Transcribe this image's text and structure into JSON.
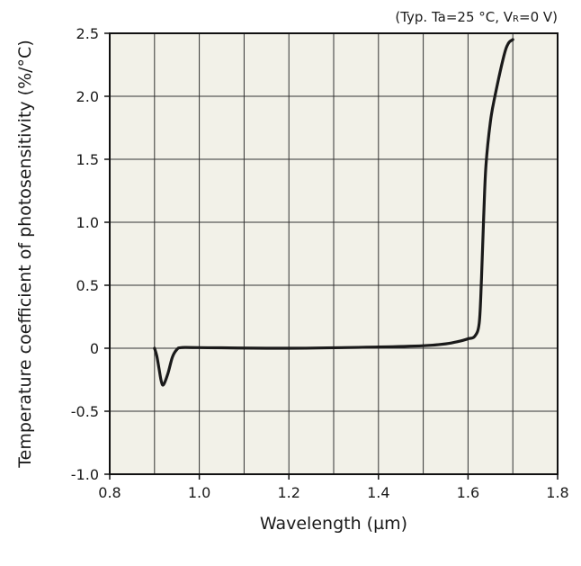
{
  "chart_data": {
    "type": "line",
    "annotation": "(Typ. Ta=25 °C, V",
    "annotation_sub": "R",
    "annotation_tail": "=0 V)",
    "xlabel": "Wavelength (µm)",
    "ylabel": "Temperature coefficient of photosensitivity (%/°C)",
    "xlim": [
      0.8,
      1.8
    ],
    "ylim": [
      -1.0,
      2.5
    ],
    "x_ticks": [
      0.8,
      1.0,
      1.2,
      1.4,
      1.6,
      1.8
    ],
    "x_tick_labels": [
      "0.8",
      "1.0",
      "1.2",
      "1.4",
      "1.6",
      "1.8"
    ],
    "y_ticks": [
      -1.0,
      -0.5,
      0,
      0.5,
      1.0,
      1.5,
      2.0,
      2.5
    ],
    "y_tick_labels": [
      "-1.0",
      "-0.5",
      "0",
      "0.5",
      "1.0",
      "1.5",
      "2.0",
      "2.5"
    ],
    "x_grid": [
      0.9,
      1.0,
      1.1,
      1.2,
      1.3,
      1.4,
      1.5,
      1.6,
      1.7
    ],
    "y_grid": [
      -0.5,
      0,
      0.5,
      1.0,
      1.5,
      2.0
    ],
    "grid": true,
    "series": [
      {
        "x": [
          0.9,
          0.905,
          0.91,
          0.915,
          0.92,
          0.93,
          0.94,
          0.95,
          0.96,
          1.0,
          1.2,
          1.4,
          1.5,
          1.55,
          1.58,
          1.6,
          1.615,
          1.625,
          1.63,
          1.635,
          1.64,
          1.65,
          1.66,
          1.68,
          1.69,
          1.7
        ],
        "y": [
          0.0,
          -0.06,
          -0.16,
          -0.26,
          -0.29,
          -0.2,
          -0.07,
          -0.01,
          0.005,
          0.005,
          0.0,
          0.01,
          0.02,
          0.035,
          0.055,
          0.075,
          0.095,
          0.2,
          0.55,
          1.05,
          1.45,
          1.8,
          2.0,
          2.32,
          2.42,
          2.45
        ]
      }
    ],
    "colors": {
      "plot_background": "#f2f1e8",
      "grid": "#333333",
      "line": "#1a1a1a"
    }
  }
}
